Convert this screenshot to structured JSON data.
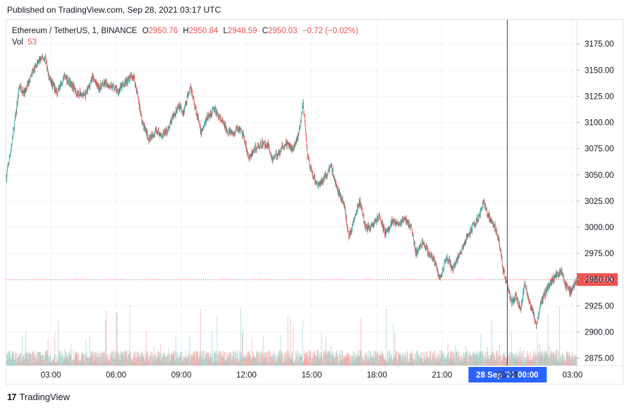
{
  "header": {
    "published": "Published on TradingView.com, Sep 28, 2021 03:17 UTC"
  },
  "legend": {
    "symbol": "Ethereum / TetherUS, 1, BINANCE",
    "open_label": "O",
    "open": "2950.76",
    "high_label": "H",
    "high": "2950.84",
    "low_label": "L",
    "low": "2948.59",
    "close_label": "C",
    "close": "2950.03",
    "change": "−0.72 (−0.02%)",
    "vol_label": "Vol",
    "vol": "53"
  },
  "footer": {
    "brand": "TradingView",
    "mark": "17"
  },
  "colors": {
    "up": "#26a69a",
    "down": "#ef5350",
    "up_vol": "#9fd6cf",
    "down_vol": "#f7aaa8",
    "grid": "#f0f3fa",
    "crosshair": "#2962ff",
    "price_tag": "#ef5350"
  },
  "chart_data": {
    "type": "candlestick",
    "symbol": "Ethereum / TetherUS",
    "interval": "1",
    "exchange": "BINANCE",
    "y_ticks": [
      2875,
      2900,
      2925,
      2950,
      2975,
      3000,
      3025,
      3050,
      3075,
      3100,
      3125,
      3150,
      3175
    ],
    "y_tick_labels": [
      "2875.00",
      "2900.00",
      "2925.00",
      "2950.00",
      "2975.00",
      "3000.00",
      "3025.00",
      "3050.00",
      "3075.00",
      "3100.00",
      "3125.00",
      "3150.00",
      "3175.00"
    ],
    "ylim": [
      2868,
      3198
    ],
    "x_ticks": [
      "03:00",
      "06:00",
      "09:00",
      "12:00",
      "15:00",
      "18:00",
      "21:00",
      "00:00",
      "03:00"
    ],
    "x_tick_hours": [
      3,
      6,
      9,
      12,
      15,
      18,
      21,
      24,
      27
    ],
    "x_range_hours": [
      0.95,
      27.2
    ],
    "last_price": 2950.03,
    "last_price_label": "2950.03",
    "crosshair_label_date": "28 Sep '21",
    "crosshair_label_time": "00:00",
    "crosshair_hour": 24,
    "price_path": [
      [
        0.95,
        3048
      ],
      [
        1.2,
        3080
      ],
      [
        1.4,
        3110
      ],
      [
        1.55,
        3135
      ],
      [
        1.8,
        3128
      ],
      [
        2.0,
        3140
      ],
      [
        2.2,
        3150
      ],
      [
        2.5,
        3160
      ],
      [
        2.75,
        3162
      ],
      [
        2.9,
        3143
      ],
      [
        3.1,
        3135
      ],
      [
        3.3,
        3128
      ],
      [
        3.6,
        3145
      ],
      [
        3.9,
        3138
      ],
      [
        4.2,
        3128
      ],
      [
        4.6,
        3126
      ],
      [
        4.9,
        3143
      ],
      [
        5.2,
        3133
      ],
      [
        5.5,
        3137
      ],
      [
        5.8,
        3135
      ],
      [
        6.1,
        3130
      ],
      [
        6.5,
        3140
      ],
      [
        6.8,
        3145
      ],
      [
        7.0,
        3125
      ],
      [
        7.2,
        3100
      ],
      [
        7.5,
        3085
      ],
      [
        7.8,
        3092
      ],
      [
        8.1,
        3088
      ],
      [
        8.4,
        3093
      ],
      [
        8.6,
        3105
      ],
      [
        8.9,
        3115
      ],
      [
        9.1,
        3110
      ],
      [
        9.4,
        3135
      ],
      [
        9.7,
        3110
      ],
      [
        9.9,
        3090
      ],
      [
        10.2,
        3105
      ],
      [
        10.5,
        3113
      ],
      [
        10.8,
        3103
      ],
      [
        11.1,
        3093
      ],
      [
        11.4,
        3088
      ],
      [
        11.6,
        3095
      ],
      [
        11.9,
        3085
      ],
      [
        12.1,
        3065
      ],
      [
        12.4,
        3075
      ],
      [
        12.7,
        3080
      ],
      [
        13.0,
        3078
      ],
      [
        13.2,
        3065
      ],
      [
        13.5,
        3072
      ],
      [
        13.8,
        3080
      ],
      [
        14.1,
        3075
      ],
      [
        14.4,
        3088
      ],
      [
        14.6,
        3120
      ],
      [
        14.8,
        3068
      ],
      [
        15.0,
        3052
      ],
      [
        15.3,
        3040
      ],
      [
        15.6,
        3048
      ],
      [
        15.9,
        3058
      ],
      [
        16.2,
        3035
      ],
      [
        16.5,
        3022
      ],
      [
        16.7,
        2990
      ],
      [
        17.0,
        3010
      ],
      [
        17.2,
        3025
      ],
      [
        17.5,
        2998
      ],
      [
        17.8,
        3002
      ],
      [
        18.1,
        3010
      ],
      [
        18.4,
        2993
      ],
      [
        18.7,
        3005
      ],
      [
        19.0,
        3003
      ],
      [
        19.3,
        3008
      ],
      [
        19.6,
        2998
      ],
      [
        19.8,
        2975
      ],
      [
        20.1,
        2985
      ],
      [
        20.4,
        2975
      ],
      [
        20.7,
        2965
      ],
      [
        20.9,
        2950
      ],
      [
        21.2,
        2972
      ],
      [
        21.5,
        2960
      ],
      [
        21.8,
        2975
      ],
      [
        22.1,
        2988
      ],
      [
        22.4,
        3000
      ],
      [
        22.7,
        3010
      ],
      [
        22.9,
        3025
      ],
      [
        23.1,
        3012
      ],
      [
        23.4,
        3002
      ],
      [
        23.6,
        2990
      ],
      [
        23.8,
        2960
      ],
      [
        24.0,
        2945
      ],
      [
        24.2,
        2928
      ],
      [
        24.4,
        2935
      ],
      [
        24.6,
        2922
      ],
      [
        24.8,
        2945
      ],
      [
        25.0,
        2930
      ],
      [
        25.2,
        2918
      ],
      [
        25.35,
        2905
      ],
      [
        25.5,
        2925
      ],
      [
        25.8,
        2940
      ],
      [
        26.0,
        2948
      ],
      [
        26.3,
        2955
      ],
      [
        26.5,
        2958
      ],
      [
        26.7,
        2944
      ],
      [
        26.9,
        2938
      ],
      [
        27.2,
        2950
      ]
    ]
  }
}
